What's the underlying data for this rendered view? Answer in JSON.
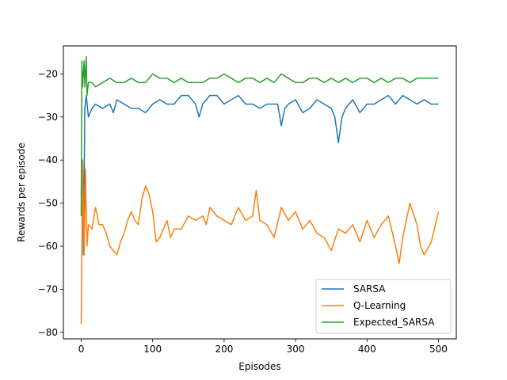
{
  "chart_data": {
    "type": "line",
    "xlabel": "Episodes",
    "ylabel": "Rewards per episode",
    "xlim": [
      -25,
      525
    ],
    "ylim": [
      -81.5,
      -13.5
    ],
    "xticks": [
      0,
      100,
      200,
      300,
      400,
      500
    ],
    "yticks": [
      -80,
      -70,
      -60,
      -50,
      -40,
      -30,
      -20
    ],
    "grid": false,
    "legend_position": "lower-right",
    "series": [
      {
        "name": "SARSA",
        "color": "#1f77b4",
        "x": [
          0,
          2,
          3,
          5,
          7,
          10,
          15,
          20,
          30,
          40,
          45,
          50,
          60,
          70,
          80,
          90,
          100,
          110,
          120,
          130,
          140,
          150,
          160,
          165,
          170,
          180,
          190,
          200,
          210,
          220,
          230,
          240,
          250,
          260,
          270,
          275,
          280,
          285,
          290,
          300,
          310,
          320,
          330,
          340,
          350,
          355,
          360,
          365,
          370,
          380,
          390,
          400,
          410,
          420,
          430,
          440,
          450,
          460,
          470,
          480,
          490,
          500
        ],
        "y": [
          -48,
          -40,
          -62,
          -28,
          -25,
          -30,
          -28,
          -27,
          -28,
          -27,
          -29,
          -26,
          -27,
          -28,
          -28,
          -29,
          -27,
          -26,
          -27,
          -27,
          -25,
          -25,
          -27,
          -30,
          -27,
          -25,
          -25,
          -27,
          -26,
          -25,
          -27,
          -27,
          -28,
          -27,
          -27,
          -27,
          -32,
          -28,
          -27,
          -26,
          -29,
          -28,
          -26,
          -27,
          -28,
          -30,
          -36,
          -30,
          -28,
          -26,
          -29,
          -27,
          -27,
          -26,
          -25,
          -27,
          -25,
          -26,
          -27,
          -26,
          -27,
          -27
        ]
      },
      {
        "name": "Q-Learning",
        "color": "#ff7f0e",
        "x": [
          0,
          1,
          2,
          4,
          6,
          8,
          10,
          15,
          20,
          25,
          30,
          35,
          40,
          45,
          50,
          55,
          60,
          65,
          70,
          75,
          80,
          85,
          90,
          95,
          100,
          105,
          110,
          115,
          120,
          125,
          130,
          140,
          150,
          160,
          170,
          175,
          180,
          190,
          200,
          210,
          220,
          230,
          240,
          245,
          250,
          260,
          270,
          280,
          290,
          300,
          310,
          320,
          330,
          340,
          350,
          360,
          370,
          380,
          390,
          400,
          410,
          420,
          430,
          440,
          445,
          450,
          460,
          470,
          475,
          480,
          490,
          500
        ],
        "y": [
          -78,
          -60,
          -40,
          -62,
          -42,
          -60,
          -55,
          -56,
          -51,
          -55,
          -55,
          -57,
          -60,
          -61,
          -62,
          -59,
          -57,
          -54,
          -52,
          -54,
          -55,
          -49,
          -46,
          -48,
          -52,
          -59,
          -58,
          -56,
          -54,
          -58,
          -56,
          -56,
          -53,
          -54,
          -53,
          -55,
          -51,
          -53,
          -54,
          -55,
          -51,
          -54,
          -53,
          -47,
          -54,
          -55,
          -58,
          -51,
          -54,
          -52,
          -56,
          -54,
          -57,
          -58,
          -61,
          -56,
          -57,
          -55,
          -59,
          -54,
          -58,
          -55,
          -53,
          -60,
          -64,
          -58,
          -50,
          -55,
          -60,
          -62,
          -59,
          -52
        ]
      },
      {
        "name": "Expected_SARSA",
        "color": "#2ca02c",
        "x": [
          0,
          1,
          2,
          4,
          5,
          7,
          8,
          10,
          15,
          20,
          30,
          40,
          50,
          60,
          70,
          80,
          90,
          100,
          110,
          120,
          130,
          140,
          150,
          160,
          170,
          180,
          190,
          200,
          210,
          220,
          230,
          240,
          250,
          260,
          270,
          280,
          290,
          300,
          310,
          320,
          330,
          340,
          350,
          360,
          370,
          380,
          390,
          400,
          410,
          420,
          430,
          440,
          450,
          460,
          470,
          480,
          490,
          500
        ],
        "y": [
          -53,
          -17,
          -23,
          -17,
          -23,
          -16,
          -25,
          -22,
          -22,
          -23,
          -22,
          -21,
          -22,
          -22,
          -21,
          -22,
          -22,
          -20,
          -21,
          -21,
          -22,
          -21,
          -22,
          -22,
          -22,
          -21,
          -21,
          -20,
          -21,
          -22,
          -21,
          -21,
          -22,
          -21,
          -22,
          -20,
          -21,
          -22,
          -22,
          -21,
          -21,
          -22,
          -21,
          -22,
          -21,
          -22,
          -21,
          -21,
          -22,
          -21,
          -22,
          -21,
          -21,
          -22,
          -21,
          -21,
          -21,
          -21
        ]
      }
    ]
  }
}
